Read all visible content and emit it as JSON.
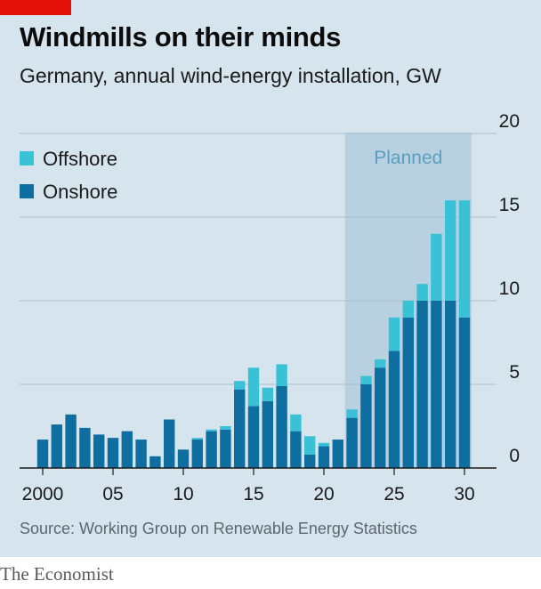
{
  "header": {
    "title": "Windmills on their minds",
    "subtitle": "Germany, annual wind-energy installation, GW"
  },
  "footer": {
    "source": "Source: Working Group on Renewable Energy Statistics",
    "brand": "The Economist"
  },
  "colors": {
    "background": "#d6e4ee",
    "onshore": "#0f6ea0",
    "offshore": "#39c1d6",
    "planned_shade": "#b8d0df",
    "planned_text": "#5a9fc0",
    "brand_red": "#e3120b",
    "gridline": "#a9bfcc",
    "axis": "#1a1a1a"
  },
  "chart_data": {
    "type": "bar",
    "stacked": true,
    "x": [
      2000,
      2001,
      2002,
      2003,
      2004,
      2005,
      2006,
      2007,
      2008,
      2009,
      2010,
      2011,
      2012,
      2013,
      2014,
      2015,
      2016,
      2017,
      2018,
      2019,
      2020,
      2021,
      2022,
      2023,
      2024,
      2025,
      2026,
      2027,
      2028,
      2029,
      2030
    ],
    "x_tick_values": [
      2000,
      2005,
      2010,
      2015,
      2020,
      2025,
      2030
    ],
    "x_tick_labels": [
      "2000",
      "05",
      "10",
      "15",
      "20",
      "25",
      "30"
    ],
    "series": [
      {
        "name": "Onshore",
        "color": "#0f6ea0",
        "values": [
          1.7,
          2.6,
          3.2,
          2.4,
          2.0,
          1.8,
          2.2,
          1.7,
          0.7,
          2.9,
          1.1,
          1.7,
          2.2,
          2.3,
          4.7,
          3.7,
          4.0,
          4.9,
          2.2,
          0.8,
          1.3,
          1.7,
          3.0,
          5.0,
          6.0,
          7.0,
          9.0,
          10.0,
          10.0,
          10.0,
          9.0
        ]
      },
      {
        "name": "Offshore",
        "color": "#39c1d6",
        "values": [
          0,
          0,
          0,
          0,
          0,
          0,
          0,
          0,
          0,
          0,
          0,
          0.1,
          0.1,
          0.2,
          0.5,
          2.3,
          0.8,
          1.3,
          1.0,
          1.1,
          0.2,
          0,
          0.5,
          0.5,
          0.5,
          2.0,
          1.0,
          1.0,
          4.0,
          6.0,
          7.0
        ]
      }
    ],
    "ylim": [
      0,
      20
    ],
    "y_ticks": [
      0,
      5,
      10,
      15,
      20
    ],
    "ylabel": "",
    "xlabel": "",
    "grid": true,
    "legend_position": "top-left",
    "planned_range": [
      2022,
      2030
    ],
    "planned_label": "Planned",
    "unit": "GW"
  }
}
